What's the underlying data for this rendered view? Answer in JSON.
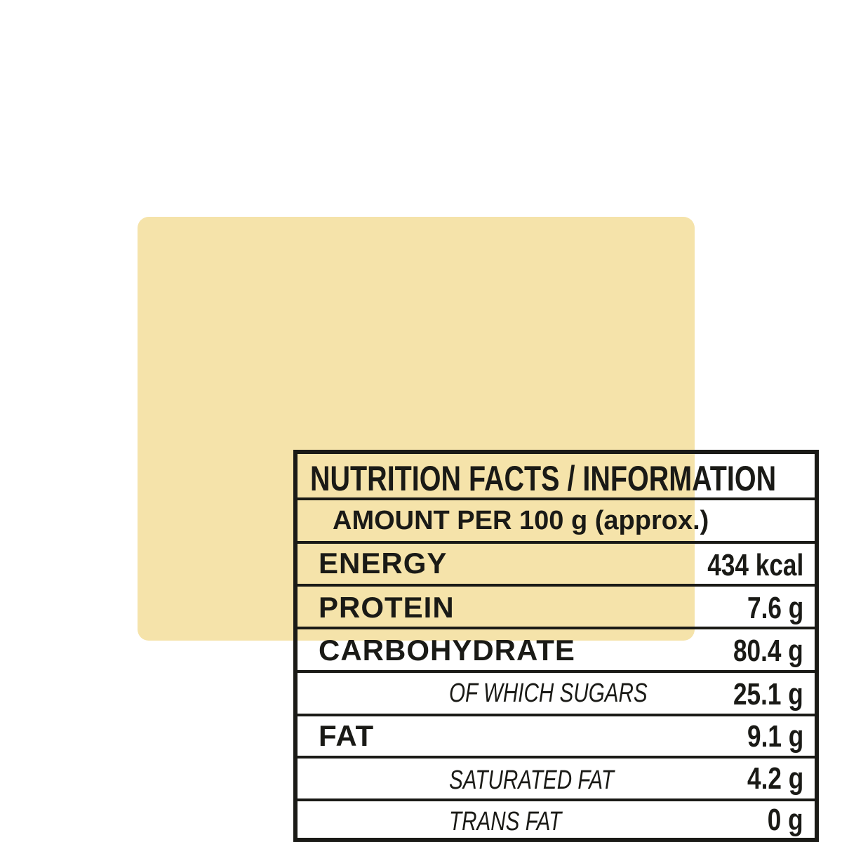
{
  "title": "NUTRITION FACTS / INFORMATION",
  "serving": "AMOUNT PER 100 g (approx.)",
  "rows": [
    {
      "label": "ENERGY",
      "value": "434 kcal",
      "indent": false
    },
    {
      "label": "PROTEIN",
      "value": "7.6 g",
      "indent": false
    },
    {
      "label": "CARBOHYDRATE",
      "value": "80.4 g",
      "indent": false
    },
    {
      "label": "OF WHICH SUGARS",
      "value": "25.1 g",
      "indent": true
    },
    {
      "label": "FAT",
      "value": "9.1 g",
      "indent": false
    },
    {
      "label": "SATURATED FAT",
      "value": "4.2 g",
      "indent": true
    },
    {
      "label": "TRANS FAT",
      "value": "0 g",
      "indent": true
    }
  ],
  "colors": {
    "background": "#f5e3aa",
    "ink": "#1a1a16"
  }
}
